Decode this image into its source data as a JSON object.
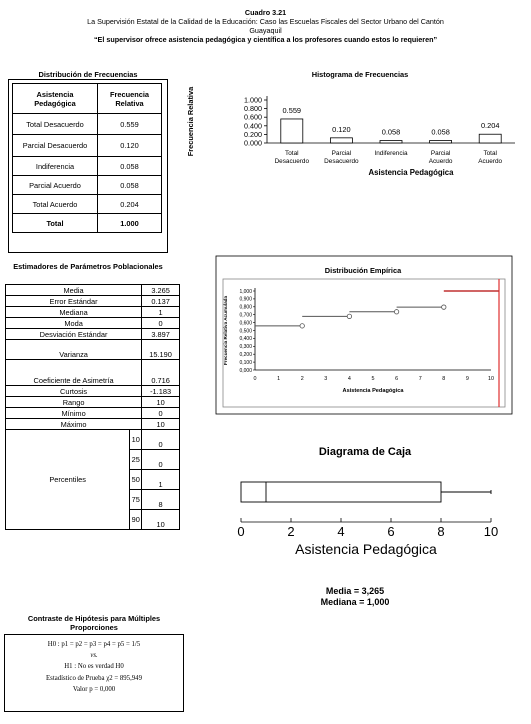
{
  "header": {
    "code": "Cuadro 3.21",
    "subtitle_line1": "La Supervisión Estatal de la Calidad de la Educación: Caso las Escuelas Fiscales del Sector Urbano del Cantón",
    "subtitle_line2": "Guayaquil",
    "statement": "“El supervisor ofrece asistencia pedagógica y científica a los profesores cuando estos lo requieren”"
  },
  "freq": {
    "title": "Distribución de Frecuencias",
    "col1": "Asistencia Pedagógica",
    "col2": "Frecuencia Relativa",
    "rows": [
      {
        "label": "Total Desacuerdo",
        "value": "0.559"
      },
      {
        "label": "Parcial Desacuerdo",
        "value": "0.120"
      },
      {
        "label": "Indiferencia",
        "value": "0.058"
      },
      {
        "label": "Parcial Acuerdo",
        "value": "0.058"
      },
      {
        "label": "Total Acuerdo",
        "value": "0.204"
      }
    ],
    "total_label": "Total",
    "total_value": "1.000"
  },
  "estimators": {
    "title": "Estimadores de Parámetros Poblacionales",
    "rows": [
      {
        "label": "Media",
        "value": "3.265"
      },
      {
        "label": "Error Estándar",
        "value": "0.137"
      },
      {
        "label": "Mediana",
        "value": "1"
      },
      {
        "label": "Moda",
        "value": "0"
      },
      {
        "label": "Desviación Estándar",
        "value": "3.897"
      },
      {
        "label": "Varianza",
        "value": "15.190"
      },
      {
        "label": "Coeficiente de Asimetría",
        "value": "0.716"
      },
      {
        "label": "Curtosis",
        "value": "-1.183"
      },
      {
        "label": "Rango",
        "value": "10"
      },
      {
        "label": "Mínimo",
        "value": "0"
      },
      {
        "label": "Máximo",
        "value": "10"
      }
    ],
    "percentiles_label": "Percentiles",
    "percentiles": [
      {
        "p": "10",
        "value": "0"
      },
      {
        "p": "25",
        "value": "0"
      },
      {
        "p": "50",
        "value": "1"
      },
      {
        "p": "75",
        "value": "8"
      },
      {
        "p": "90",
        "value": "10"
      }
    ]
  },
  "hypothesis": {
    "title": "Contraste de Hipótesis para Múltiples Proporciones",
    "h0": "H0 : p1 = p2 = p3 = p4 = p5 = 1/5",
    "vs": "vs.",
    "h1": "H1 : No es verdad H0",
    "stat": "Estadístico de Prueba χ2 = 895,949",
    "pvalue": "Valor p = 0,000"
  },
  "box_summary": {
    "mean": "Media = 3,265",
    "median": "Mediana = 1,000"
  },
  "chart_data": [
    {
      "type": "bar",
      "title": "Histograma de Frecuencias",
      "xlabel": "Asistencia Pedagógica",
      "ylabel": "Frecuencia Relativa",
      "categories": [
        "Total Desacuerdo",
        "Parcial Desacuerdo",
        "Indiferencia",
        "Parcial Acuerdo",
        "Total Acuerdo"
      ],
      "values": [
        0.559,
        0.12,
        0.058,
        0.058,
        0.204
      ],
      "value_labels": [
        "0.559",
        "0.120",
        "0.058",
        "0.058",
        "0.204"
      ],
      "ylim": [
        0,
        1
      ],
      "yticks": [
        "0.000",
        "0.200",
        "0.400",
        "0.600",
        "0.800",
        "1.000"
      ]
    },
    {
      "type": "line",
      "title": "Distribución Empírica",
      "xlabel": "Asistencia Pedagógica",
      "ylabel": "Frecuencia Relativa Acumulada",
      "xticks": [
        "0",
        "1",
        "2",
        "3",
        "4",
        "5",
        "6",
        "7",
        "8",
        "9",
        "10"
      ],
      "yticks": [
        "0,000",
        "0,100",
        "0,200",
        "0,300",
        "0,400",
        "0,500",
        "0,600",
        "0,700",
        "0,800",
        "0,900",
        "1,000"
      ],
      "xlim": [
        0,
        10
      ],
      "ylim": [
        0,
        1
      ],
      "steps": [
        {
          "x0": 0,
          "x1": 2,
          "y": 0.559
        },
        {
          "x0": 2,
          "x1": 4,
          "y": 0.679
        },
        {
          "x0": 4,
          "x1": 6,
          "y": 0.737
        },
        {
          "x0": 6,
          "x1": 8,
          "y": 0.796
        },
        {
          "x0": 8,
          "x1": 10,
          "y": 1.0
        }
      ]
    },
    {
      "type": "box",
      "title": "Diagrama de Caja",
      "xlabel": "Asistencia Pedagógica",
      "xticks": [
        "0",
        "2",
        "4",
        "6",
        "8",
        "10"
      ],
      "xlim": [
        0,
        10
      ],
      "min": 0,
      "q1": 0,
      "median": 1,
      "q3": 8,
      "max": 10
    }
  ]
}
